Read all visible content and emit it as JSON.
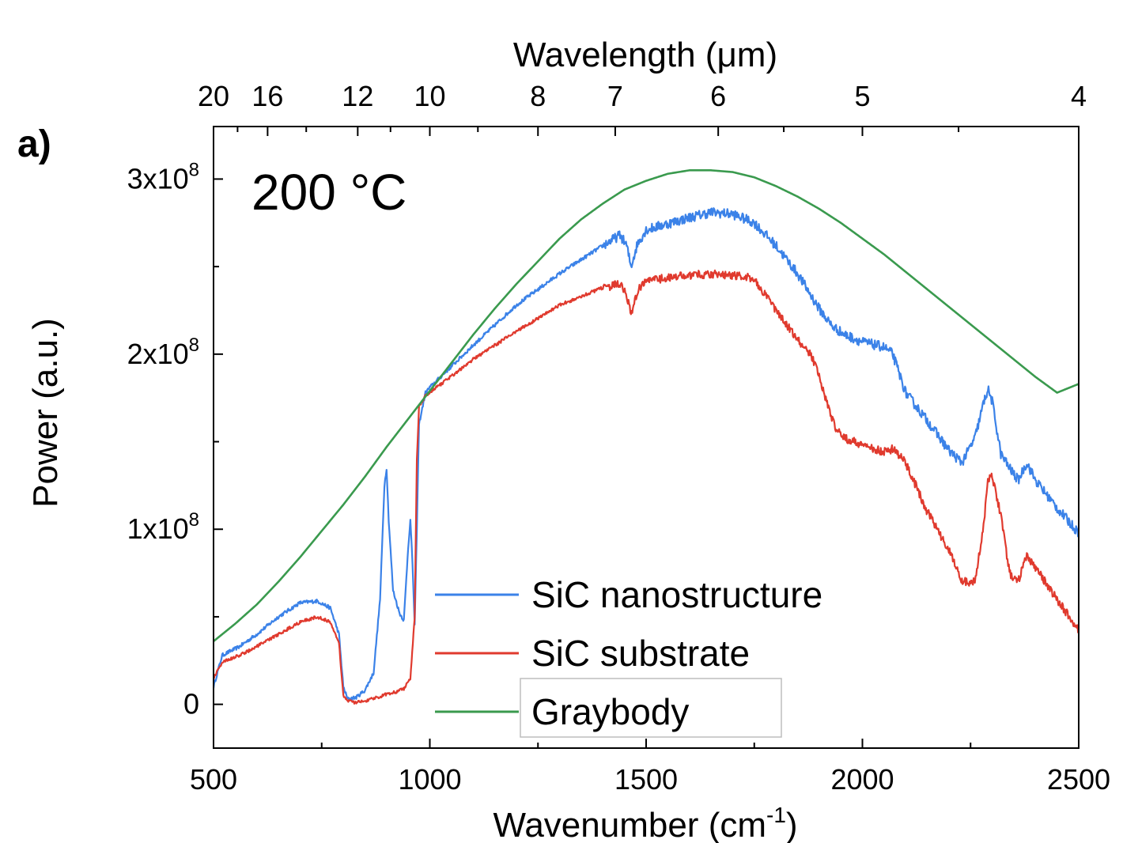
{
  "chart_data": {
    "type": "line",
    "panel_label": "a)",
    "annotation": "200 °C",
    "xlabel": "Wavenumber (cm",
    "xlabel_sup": "-1",
    "xlabel_end": ")",
    "ylabel": "Power (a.u.)",
    "x2label": "Wavelength (μm)",
    "xlim": [
      500,
      2500
    ],
    "ylim": [
      -25000000,
      330000000
    ],
    "xticks": [
      500,
      1000,
      1500,
      2000,
      2500
    ],
    "xtick_labels": [
      "500",
      "1000",
      "1500",
      "2000",
      "2500"
    ],
    "yticks": [
      0,
      100000000,
      200000000,
      300000000
    ],
    "ytick_labels": [
      {
        "base": "0",
        "exp": ""
      },
      {
        "base": "1x10",
        "exp": "8"
      },
      {
        "base": "2x10",
        "exp": "8"
      },
      {
        "base": "3x10",
        "exp": "8"
      }
    ],
    "top_axis": {
      "unit": "μm",
      "ticks": [
        20,
        16,
        12,
        10,
        8,
        7,
        6,
        5,
        4
      ],
      "tick_labels": [
        "20",
        "16",
        "12",
        "10",
        "8",
        "7",
        "6",
        "5",
        "4"
      ]
    },
    "legend": {
      "position": "bottom-center"
    },
    "series": [
      {
        "name": "SiC nanostructure",
        "color": "#3b82e8",
        "x": [
          500,
          520,
          560,
          600,
          650,
          700,
          740,
          770,
          790,
          800,
          810,
          830,
          850,
          870,
          885,
          895,
          900,
          905,
          915,
          930,
          940,
          950,
          955,
          960,
          965,
          970,
          975,
          990,
          1000,
          1100,
          1200,
          1300,
          1400,
          1440,
          1455,
          1465,
          1480,
          1500,
          1600,
          1650,
          1700,
          1750,
          1800,
          1850,
          1900,
          1930,
          1960,
          2000,
          2050,
          2070,
          2100,
          2150,
          2200,
          2230,
          2260,
          2280,
          2290,
          2300,
          2320,
          2340,
          2360,
          2380,
          2400,
          2450,
          2500
        ],
        "y": [
          10000000,
          28000000,
          33000000,
          40000000,
          50000000,
          58000000,
          59000000,
          55000000,
          40000000,
          10000000,
          3000000,
          4000000,
          8000000,
          18000000,
          60000000,
          125000000,
          135000000,
          105000000,
          65000000,
          52000000,
          48000000,
          90000000,
          105000000,
          80000000,
          45000000,
          100000000,
          160000000,
          178000000,
          181000000,
          205000000,
          228000000,
          246000000,
          262000000,
          268000000,
          262000000,
          250000000,
          263000000,
          271000000,
          278000000,
          281000000,
          280000000,
          275000000,
          262000000,
          246000000,
          226000000,
          216000000,
          211000000,
          207000000,
          204000000,
          200000000,
          178000000,
          162000000,
          145000000,
          138000000,
          152000000,
          172000000,
          180000000,
          173000000,
          143000000,
          135000000,
          128000000,
          138000000,
          128000000,
          112000000,
          98000000
        ]
      },
      {
        "name": "SiC substrate",
        "color": "#e03a2e",
        "x": [
          500,
          520,
          560,
          600,
          650,
          700,
          740,
          770,
          790,
          800,
          810,
          830,
          850,
          880,
          900,
          920,
          940,
          955,
          965,
          970,
          975,
          990,
          1000,
          1100,
          1200,
          1300,
          1400,
          1440,
          1455,
          1465,
          1480,
          1500,
          1600,
          1650,
          1700,
          1750,
          1800,
          1850,
          1880,
          1900,
          1920,
          1940,
          1960,
          2000,
          2050,
          2070,
          2100,
          2150,
          2200,
          2230,
          2260,
          2280,
          2290,
          2300,
          2320,
          2340,
          2360,
          2380,
          2400,
          2450,
          2500
        ],
        "y": [
          15000000,
          24000000,
          28000000,
          33000000,
          40000000,
          47000000,
          50000000,
          47000000,
          35000000,
          5000000,
          2000000,
          1000000,
          2000000,
          4000000,
          6000000,
          7000000,
          9000000,
          15000000,
          50000000,
          140000000,
          170000000,
          176000000,
          178000000,
          197000000,
          213000000,
          228000000,
          238000000,
          240000000,
          234000000,
          222000000,
          236000000,
          242000000,
          245000000,
          246000000,
          245000000,
          243000000,
          225000000,
          208000000,
          200000000,
          188000000,
          170000000,
          157000000,
          152000000,
          148000000,
          144000000,
          146000000,
          138000000,
          110000000,
          88000000,
          70000000,
          70000000,
          102000000,
          128000000,
          130000000,
          108000000,
          75000000,
          70000000,
          85000000,
          78000000,
          60000000,
          42000000
        ]
      },
      {
        "name": "Graybody",
        "color": "#3a9a4e",
        "x": [
          500,
          550,
          600,
          650,
          700,
          750,
          800,
          850,
          900,
          950,
          1000,
          1050,
          1100,
          1150,
          1200,
          1250,
          1300,
          1350,
          1400,
          1450,
          1500,
          1550,
          1600,
          1650,
          1700,
          1750,
          1800,
          1850,
          1900,
          1950,
          2000,
          2050,
          2100,
          2150,
          2200,
          2250,
          2300,
          2350,
          2400,
          2450,
          2500
        ],
        "y": [
          36000000,
          46000000,
          57000000,
          70000000,
          84000000,
          99000000,
          114000000,
          130000000,
          147000000,
          163000000,
          179000000,
          195000000,
          211000000,
          226000000,
          240000000,
          253000000,
          266000000,
          277000000,
          286000000,
          294000000,
          299000000,
          303000000,
          305000000,
          305000000,
          304000000,
          301000000,
          296000000,
          290000000,
          283000000,
          275000000,
          266000000,
          257000000,
          247000000,
          237000000,
          227000000,
          217000000,
          207000000,
          197000000,
          187000000,
          178000000,
          183000000
        ]
      }
    ]
  }
}
